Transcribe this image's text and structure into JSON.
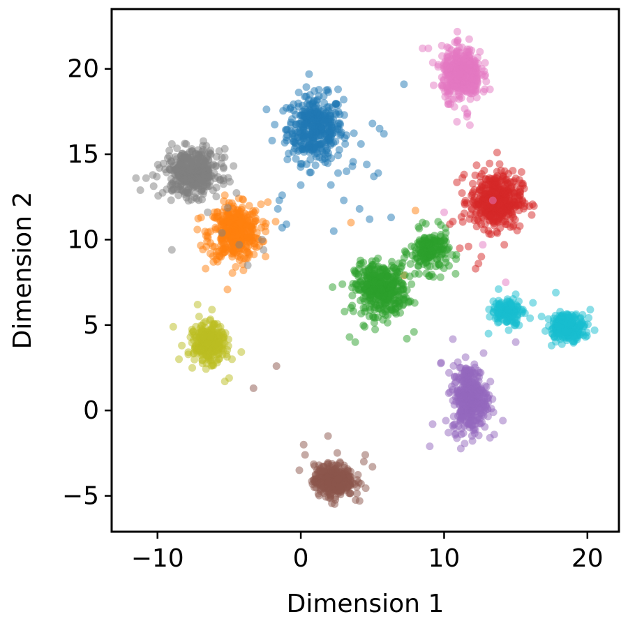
{
  "chart_data": {
    "type": "scatter",
    "title": "",
    "xlabel": "Dimension 1",
    "ylabel": "Dimension 2",
    "xlim": [
      -13.2,
      22.2
    ],
    "ylim": [
      -7.1,
      23.5
    ],
    "xticks": [
      -10,
      0,
      10,
      20
    ],
    "yticks": [
      -5,
      0,
      5,
      10,
      15,
      20
    ],
    "xtick_labels": [
      "−10",
      "0",
      "10",
      "20"
    ],
    "ytick_labels": [
      "−5",
      "0",
      "5",
      "10",
      "15",
      "20"
    ],
    "grid": false,
    "legend": "none",
    "point_alpha": 0.5,
    "colors": [
      "#1f77b4",
      "#ff7f0e",
      "#2ca02c",
      "#d62728",
      "#9467bd",
      "#8c564b",
      "#e377c2",
      "#7f7f7f",
      "#bcbd22",
      "#17becf"
    ],
    "clusters": [
      {
        "color": "#1f77b4",
        "center": [
          1.0,
          16.5
        ],
        "spread": [
          1.3,
          1.3
        ],
        "count": 380,
        "extra_points": [
          [
            5.5,
            16.5
          ],
          [
            5.8,
            16.2
          ],
          [
            5.0,
            16.8
          ],
          [
            4.2,
            15.6
          ],
          [
            3.6,
            14.3
          ],
          [
            2.6,
            13.9
          ],
          [
            2.1,
            13.2
          ],
          [
            3.0,
            12.3
          ],
          [
            4.1,
            11.8
          ],
          [
            4.8,
            11.2
          ],
          [
            5.4,
            13.9
          ],
          [
            5.1,
            13.7
          ],
          [
            -1.3,
            12.6
          ],
          [
            -1.5,
            12.3
          ],
          [
            -1.6,
            11.8
          ],
          [
            -1.0,
            10.9
          ],
          [
            -1.3,
            10.7
          ],
          [
            -2.0,
            15.8
          ],
          [
            7.2,
            19.1
          ],
          [
            2.6,
            18.8
          ],
          [
            3.1,
            15.6
          ],
          [
            4.6,
            14.4
          ],
          [
            6.3,
            11.3
          ],
          [
            2.3,
            10.5
          ]
        ]
      },
      {
        "color": "#ff7f0e",
        "center": [
          -4.6,
          10.4
        ],
        "spread": [
          1.2,
          1.1
        ],
        "count": 380,
        "extra_points": [
          [
            -2.3,
            12.2
          ],
          [
            -2.6,
            9.9
          ],
          [
            -5.3,
            12.6
          ],
          [
            -6.5,
            10.2
          ],
          [
            -4.0,
            8.2
          ],
          [
            8.0,
            11.7
          ],
          [
            3.5,
            11.0
          ],
          [
            7.2,
            7.9
          ]
        ]
      },
      {
        "color": "#2ca02c",
        "center": [
          5.6,
          7.1
        ],
        "spread": [
          1.2,
          1.0
        ],
        "count": 380,
        "extra_points": [
          [
            3.4,
            4.3
          ],
          [
            3.8,
            4.0
          ],
          [
            7.4,
            4.2
          ],
          [
            7.9,
            4.6
          ],
          [
            4.2,
            8.6
          ],
          [
            8.5,
            11.0
          ],
          [
            10.8,
            8.0
          ],
          [
            3.5,
            6.0
          ]
        ]
      },
      {
        "color": "#2ca02c",
        "center": [
          9.0,
          9.3
        ],
        "spread": [
          0.9,
          0.8
        ],
        "count": 180,
        "extra_points": []
      },
      {
        "color": "#d62728",
        "center": [
          13.6,
          12.3
        ],
        "spread": [
          1.2,
          1.1
        ],
        "count": 420,
        "extra_points": [
          [
            12.2,
            8.3
          ],
          [
            12.6,
            9.0
          ],
          [
            12.4,
            8.6
          ],
          [
            10.4,
            10.9
          ],
          [
            11.1,
            9.5
          ],
          [
            14.2,
            9.7
          ],
          [
            13.7,
            15.1
          ],
          [
            14.6,
            11.2
          ],
          [
            11.7,
            9.6
          ]
        ]
      },
      {
        "color": "#9467bd",
        "center": [
          11.8,
          0.7
        ],
        "spread": [
          0.8,
          1.3
        ],
        "count": 380,
        "extra_points": [
          [
            9.2,
            -0.8
          ],
          [
            9.0,
            -2.1
          ],
          [
            9.8,
            2.8
          ],
          [
            10.3,
            -1.3
          ],
          [
            13.2,
            -1.6
          ],
          [
            14.1,
            -0.6
          ],
          [
            11.1,
            2.5
          ],
          [
            15.0,
            4.0
          ]
        ]
      },
      {
        "color": "#8c564b",
        "center": [
          2.3,
          -4.1
        ],
        "spread": [
          0.9,
          0.6
        ],
        "count": 380,
        "extra_points": [
          [
            0.2,
            -2.0
          ],
          [
            0.3,
            -2.6
          ],
          [
            4.5,
            -2.6
          ],
          [
            4.4,
            -3.0
          ],
          [
            5.0,
            -3.3
          ],
          [
            4.1,
            -5.3
          ],
          [
            1.9,
            -1.5
          ],
          [
            -0.1,
            -3.5
          ],
          [
            -1.7,
            2.6
          ],
          [
            -3.3,
            1.3
          ]
        ]
      },
      {
        "color": "#e377c2",
        "center": [
          11.2,
          19.7
        ],
        "spread": [
          0.9,
          1.0
        ],
        "count": 400,
        "extra_points": [
          [
            8.5,
            21.2
          ],
          [
            8.9,
            21.2
          ],
          [
            12.5,
            21.0
          ],
          [
            11.6,
            17.2
          ],
          [
            10.9,
            16.9
          ],
          [
            11.8,
            16.7
          ],
          [
            10.0,
            11.6
          ],
          [
            12.7,
            9.7
          ],
          [
            13.4,
            12.3
          ],
          [
            13.2,
            18.8
          ],
          [
            14.3,
            7.5
          ]
        ]
      },
      {
        "color": "#7f7f7f",
        "center": [
          -7.6,
          13.9
        ],
        "spread": [
          1.3,
          0.9
        ],
        "count": 380,
        "extra_points": [
          [
            -11.5,
            13.6
          ],
          [
            -11.2,
            12.9
          ],
          [
            -10.8,
            13.6
          ],
          [
            -9.0,
            9.4
          ],
          [
            -6.5,
            11.6
          ],
          [
            -5.5,
            10.4
          ],
          [
            -4.3,
            9.7
          ],
          [
            -2.7,
            10.0
          ],
          [
            -2.6,
            9.4
          ],
          [
            -9.0,
            15.6
          ],
          [
            -6.1,
            14.4
          ],
          [
            -5.5,
            14.8
          ],
          [
            -8.0,
            15.6
          ],
          [
            -3.7,
            8.5
          ]
        ]
      },
      {
        "color": "#bcbd22",
        "center": [
          -6.4,
          3.9
        ],
        "spread": [
          0.7,
          0.7
        ],
        "count": 330,
        "extra_points": [
          [
            -8.9,
            4.9
          ],
          [
            -8.3,
            3.8
          ],
          [
            -8.5,
            3.0
          ],
          [
            -5.3,
            1.7
          ],
          [
            -5.0,
            1.9
          ],
          [
            -7.2,
            6.2
          ],
          [
            -7.1,
            5.5
          ],
          [
            -6.2,
            5.9
          ],
          [
            -4.8,
            3.0
          ]
        ]
      },
      {
        "color": "#17becf",
        "center": [
          18.6,
          4.9
        ],
        "spread": [
          0.8,
          0.5
        ],
        "count": 260,
        "extra_points": [
          [
            20.5,
            4.7
          ],
          [
            20.2,
            5.9
          ],
          [
            17.8,
            6.9
          ],
          [
            17.5,
            3.8
          ]
        ]
      },
      {
        "color": "#17becf",
        "center": [
          14.4,
          5.8
        ],
        "spread": [
          0.7,
          0.5
        ],
        "count": 130,
        "extra_points": [
          [
            16.2,
            6.3
          ],
          [
            16.0,
            5.4
          ],
          [
            15.5,
            5.9
          ],
          [
            16.8,
            5.5
          ],
          [
            13.1,
            4.5
          ],
          [
            13.8,
            7.1
          ],
          [
            15.0,
            6.8
          ]
        ]
      }
    ]
  }
}
